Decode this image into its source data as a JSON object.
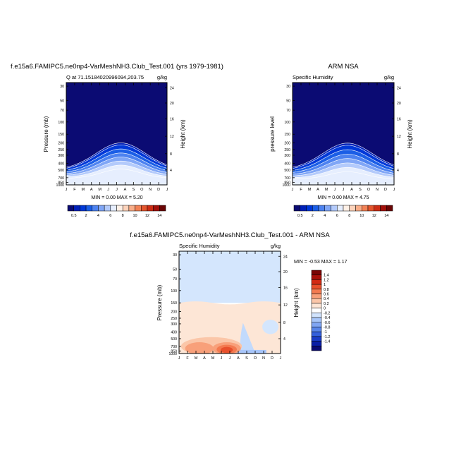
{
  "colors": {
    "cbar_top": [
      "#0b0b73",
      "#0020b8",
      "#0038d8",
      "#1b5ee6",
      "#4d82f0",
      "#80a6f6",
      "#b3cafb",
      "#e6eefe",
      "#fff0e6",
      "#fdd3bb",
      "#f9ad88",
      "#f28155",
      "#e4552d",
      "#cc2c14",
      "#a2100a",
      "#6a0505"
    ],
    "cbar_diff": [
      "#0b0b73",
      "#0a1ea6",
      "#1a3cc7",
      "#3460dc",
      "#5986ea",
      "#80a6f4",
      "#a8c6fa",
      "#d2e4fd",
      "#ffffff",
      "#fde6d6",
      "#fbc6a8",
      "#f8a07a",
      "#f37a50",
      "#e8502c",
      "#d22a14",
      "#a8100a",
      "#7a0505"
    ]
  },
  "chart_data": [
    {
      "type": "heatmap",
      "title": "f.e15a6.FAMIPC5.ne0np4-VarMeshNH3.Club_Test.001 (yrs 1979-1981)",
      "left_string": "Q at 71.15184020996094,203.75",
      "right_string": "g/kg",
      "ylabel": "Pressure (mb)",
      "ylabel_right": "Height (km)",
      "x_ticks": [
        "J",
        "F",
        "M",
        "A",
        "M",
        "J",
        "J",
        "A",
        "S",
        "O",
        "N",
        "D",
        "J"
      ],
      "y_ticks": [
        "30",
        "50",
        "70",
        "100",
        "150",
        "200",
        "250",
        "300",
        "400",
        "500",
        "700",
        "850",
        "1000"
      ],
      "y_ticks_right": [
        "24",
        "20",
        "16",
        "12",
        "8",
        "4"
      ],
      "min_max": "MIN =   0.00 MAX =   5.20",
      "levels": [
        0.5,
        2,
        4,
        6,
        8,
        10,
        12,
        14
      ],
      "contour_levels": [
        0.25,
        0.5,
        1.0,
        1.5,
        2.0,
        2.5,
        3.0,
        3.5
      ],
      "peak": {
        "month": 7,
        "value": 5.2,
        "surface_pressure": 1000
      }
    },
    {
      "type": "heatmap",
      "title": "ARM NSA",
      "left_string": "Specific Humidity",
      "right_string": "g/kg",
      "ylabel": "pressure level",
      "ylabel_right": "Height (km)",
      "x_ticks": [
        "J",
        "F",
        "M",
        "A",
        "M",
        "J",
        "J",
        "A",
        "S",
        "O",
        "N",
        "D",
        "J"
      ],
      "y_ticks": [
        "30",
        "50",
        "70",
        "100",
        "150",
        "200",
        "250",
        "300",
        "400",
        "500",
        "700",
        "850",
        "1000"
      ],
      "y_ticks_right": [
        "24",
        "20",
        "16",
        "12",
        "8",
        "4"
      ],
      "min_max": "MIN =   0.00 MAX =   4.75",
      "levels": [
        0.5,
        2,
        4,
        6,
        8,
        10,
        12,
        14
      ],
      "contour_levels": [
        0.25,
        0.5,
        1.0,
        1.5,
        2.0,
        2.5,
        3.0,
        3.5
      ],
      "peak": {
        "month": 7,
        "value": 4.75,
        "surface_pressure": 1000
      }
    },
    {
      "type": "heatmap",
      "title": "f.e15a6.FAMIPC5.ne0np4-VarMeshNH3.Club_Test.001 - ARM NSA",
      "left_string": "Specific Humidity",
      "right_string": "g/kg",
      "ylabel": "Pressure (mb)",
      "ylabel_right": "Height (km)",
      "x_ticks": [
        "J",
        "F",
        "M",
        "A",
        "M",
        "J",
        "J",
        "A",
        "S",
        "O",
        "N",
        "D",
        "J"
      ],
      "y_ticks": [
        "30",
        "50",
        "70",
        "100",
        "150",
        "200",
        "250",
        "300",
        "400",
        "500",
        "700",
        "850",
        "1000"
      ],
      "y_ticks_right": [
        "24",
        "20",
        "16",
        "12",
        "8",
        "4"
      ],
      "min_max": "MIN =  -0.53 MAX =   1.17",
      "levels": [
        "1.4",
        "1.2",
        "1",
        "0.8",
        "0.6",
        "0.4",
        "0.2",
        "0",
        "-0.2",
        "-0.4",
        "-0.6",
        "-0.8",
        "-1",
        "-1.2",
        "-1.4"
      ]
    }
  ]
}
